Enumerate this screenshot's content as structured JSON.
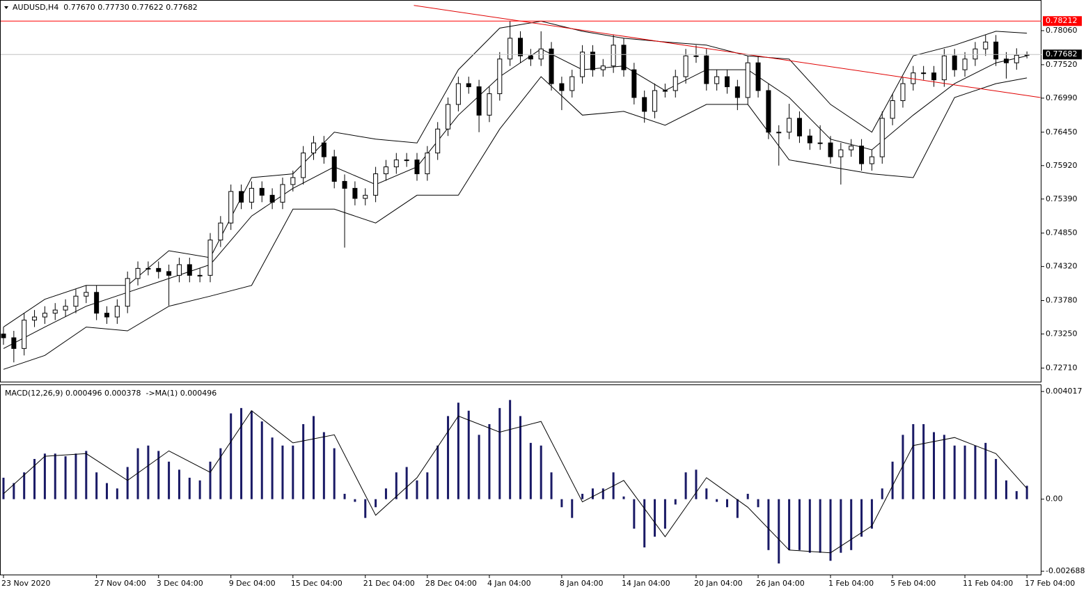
{
  "chart_data": [
    {
      "type": "candlestick",
      "title": "AUDUSD,H4  0.77670 0.77730 0.77622 0.77682",
      "categories": [
        "23 Nov 2020",
        null,
        null,
        null,
        null,
        null,
        null,
        null,
        null,
        "27 Nov 04:00",
        null,
        null,
        null,
        null,
        null,
        "3 Dec 04:00",
        null,
        null,
        null,
        null,
        null,
        null,
        "9 Dec 04:00",
        null,
        null,
        null,
        null,
        null,
        "15 Dec 04:00",
        null,
        null,
        null,
        null,
        null,
        null,
        "21 Dec 04:00",
        null,
        null,
        null,
        null,
        null,
        "28 Dec 04:00",
        null,
        null,
        null,
        null,
        null,
        "4 Jan 04:00",
        null,
        null,
        null,
        null,
        null,
        null,
        "8 Jan 04:00",
        null,
        null,
        null,
        null,
        null,
        "14 Jan 04:00",
        null,
        null,
        null,
        null,
        null,
        null,
        "20 Jan 04:00",
        null,
        null,
        null,
        null,
        null,
        "26 Jan 04:00",
        null,
        null,
        null,
        null,
        null,
        null,
        "1 Feb 04:00",
        null,
        null,
        null,
        null,
        null,
        "5 Feb 04:00",
        null,
        null,
        null,
        null,
        null,
        null,
        "11 Feb 04:00",
        null,
        null,
        null,
        null,
        null,
        "17 Feb 04:00"
      ],
      "open": [
        0.7325,
        0.7319,
        0.7302,
        0.7347,
        0.7352,
        0.7358,
        0.7363,
        0.7369,
        0.7385,
        0.7391,
        0.7358,
        0.7352,
        0.7369,
        0.7413,
        0.7429,
        0.7429,
        0.7424,
        0.7418,
        0.7435,
        0.7418,
        0.7418,
        0.7474,
        0.7501,
        0.7551,
        0.7534,
        0.7556,
        0.7545,
        0.7534,
        0.7562,
        0.7573,
        0.7612,
        0.7628,
        0.7606,
        0.7567,
        0.7556,
        0.754,
        0.7545,
        0.7579,
        0.759,
        0.7601,
        0.7601,
        0.7579,
        0.7612,
        0.765,
        0.7689,
        0.7722,
        0.7717,
        0.7672,
        0.7706,
        0.7761,
        0.7794,
        0.7766,
        0.7761,
        0.7777,
        0.7722,
        0.7711,
        0.7733,
        0.7772,
        0.7744,
        0.775,
        0.7783,
        0.7744,
        0.77,
        0.7678,
        0.7711,
        0.7711,
        0.7733,
        0.7766,
        0.7766,
        0.7722,
        0.7733,
        0.7717,
        0.77,
        0.7755,
        0.7711,
        0.7645,
        0.7645,
        0.7667,
        0.7639,
        0.7628,
        0.7628,
        0.7606,
        0.7617,
        0.7623,
        0.7595,
        0.7606,
        0.7667,
        0.7695,
        0.7722,
        0.7739,
        0.7739,
        0.7728,
        0.7766,
        0.7744,
        0.7761,
        0.7777,
        0.7788,
        0.7761,
        0.7755,
        0.7767
      ],
      "high": [
        0.7336,
        0.733,
        0.7358,
        0.7363,
        0.7369,
        0.7374,
        0.738,
        0.7396,
        0.7402,
        0.7402,
        0.7369,
        0.738,
        0.7424,
        0.744,
        0.744,
        0.744,
        0.7435,
        0.7446,
        0.7446,
        0.7429,
        0.7485,
        0.7512,
        0.7562,
        0.7562,
        0.7567,
        0.7567,
        0.7556,
        0.7573,
        0.7584,
        0.7623,
        0.7639,
        0.7639,
        0.7617,
        0.7578,
        0.7567,
        0.7556,
        0.759,
        0.7601,
        0.7612,
        0.7612,
        0.7612,
        0.7623,
        0.7661,
        0.77,
        0.7733,
        0.7733,
        0.7728,
        0.7717,
        0.7772,
        0.7821,
        0.7805,
        0.7777,
        0.7805,
        0.7788,
        0.7733,
        0.7744,
        0.7783,
        0.7783,
        0.7761,
        0.78,
        0.7794,
        0.7755,
        0.7711,
        0.7722,
        0.7722,
        0.7744,
        0.7777,
        0.7783,
        0.7777,
        0.7744,
        0.7744,
        0.7728,
        0.7766,
        0.7766,
        0.7722,
        0.7656,
        0.769,
        0.7678,
        0.765,
        0.7656,
        0.7639,
        0.7628,
        0.7634,
        0.7634,
        0.7617,
        0.7678,
        0.7706,
        0.7733,
        0.775,
        0.775,
        0.775,
        0.7777,
        0.7777,
        0.7772,
        0.7788,
        0.7799,
        0.7799,
        0.7772,
        0.7778,
        0.7773
      ],
      "low": [
        0.7308,
        0.728,
        0.7291,
        0.7336,
        0.7341,
        0.7347,
        0.7352,
        0.7358,
        0.7374,
        0.7347,
        0.7341,
        0.7341,
        0.7358,
        0.7402,
        0.7418,
        0.7413,
        0.737,
        0.7407,
        0.7407,
        0.7407,
        0.7407,
        0.7463,
        0.749,
        0.7523,
        0.7523,
        0.7534,
        0.7523,
        0.7523,
        0.7551,
        0.7562,
        0.7601,
        0.7595,
        0.7556,
        0.7462,
        0.7529,
        0.7529,
        0.7534,
        0.7568,
        0.7579,
        0.759,
        0.7568,
        0.7568,
        0.7601,
        0.7639,
        0.7678,
        0.7706,
        0.7645,
        0.7661,
        0.7695,
        0.775,
        0.7755,
        0.775,
        0.775,
        0.7711,
        0.768,
        0.77,
        0.7722,
        0.7733,
        0.7733,
        0.7739,
        0.7733,
        0.7689,
        0.766,
        0.7667,
        0.77,
        0.77,
        0.7722,
        0.7755,
        0.7711,
        0.7711,
        0.7706,
        0.768,
        0.7689,
        0.77,
        0.7634,
        0.7592,
        0.7634,
        0.7628,
        0.7617,
        0.7617,
        0.7595,
        0.7562,
        0.7606,
        0.7584,
        0.7584,
        0.7595,
        0.7656,
        0.7684,
        0.7711,
        0.7728,
        0.7717,
        0.7717,
        0.7733,
        0.7733,
        0.775,
        0.7766,
        0.775,
        0.773,
        0.7744,
        0.7762
      ],
      "close": [
        0.7319,
        0.7302,
        0.7347,
        0.7352,
        0.7358,
        0.7363,
        0.7369,
        0.7385,
        0.7391,
        0.7358,
        0.7352,
        0.7369,
        0.7413,
        0.7429,
        0.7429,
        0.7424,
        0.7418,
        0.7435,
        0.7418,
        0.7418,
        0.7474,
        0.7501,
        0.7551,
        0.7534,
        0.7556,
        0.7545,
        0.7534,
        0.7562,
        0.7573,
        0.7612,
        0.7628,
        0.7606,
        0.7567,
        0.7556,
        0.754,
        0.7545,
        0.7579,
        0.759,
        0.7601,
        0.7601,
        0.7579,
        0.7612,
        0.765,
        0.7689,
        0.7722,
        0.7717,
        0.7672,
        0.7706,
        0.7761,
        0.7794,
        0.7766,
        0.7761,
        0.7777,
        0.7722,
        0.7711,
        0.7733,
        0.7772,
        0.7744,
        0.775,
        0.7783,
        0.7744,
        0.77,
        0.7678,
        0.7711,
        0.7711,
        0.7733,
        0.7766,
        0.7766,
        0.7722,
        0.7733,
        0.7717,
        0.77,
        0.7755,
        0.7711,
        0.7645,
        0.7645,
        0.7667,
        0.7639,
        0.7628,
        0.7628,
        0.7606,
        0.7617,
        0.7623,
        0.7595,
        0.7606,
        0.7667,
        0.7695,
        0.7722,
        0.7739,
        0.7739,
        0.7728,
        0.7766,
        0.7744,
        0.7761,
        0.7777,
        0.7788,
        0.7761,
        0.7755,
        0.7767,
        0.7768
      ],
      "color": "#000000",
      "bands": [
        {
          "x": [
            0,
            4,
            8,
            12,
            16,
            20,
            24,
            28,
            32,
            36,
            40,
            44,
            48,
            52,
            56,
            60,
            64,
            68,
            72,
            76,
            80,
            84,
            88,
            92,
            96,
            99
          ],
          "values": [
            0.7336,
            0.738,
            0.7402,
            0.7402,
            0.7457,
            0.7446,
            0.7573,
            0.7579,
            0.7645,
            0.7634,
            0.7628,
            0.7744,
            0.781,
            0.7821,
            0.7805,
            0.7794,
            0.7788,
            0.7783,
            0.7766,
            0.7761,
            0.7689,
            0.7645,
            0.7766,
            0.7783,
            0.7805,
            0.7802
          ],
          "color": "#000000"
        },
        {
          "x": [
            0,
            4,
            8,
            12,
            16,
            20,
            24,
            28,
            32,
            36,
            40,
            44,
            48,
            52,
            56,
            60,
            64,
            68,
            72,
            76,
            80,
            84,
            88,
            92,
            96,
            99
          ],
          "values": [
            0.7302,
            0.7336,
            0.7369,
            0.7391,
            0.7413,
            0.7435,
            0.7512,
            0.7556,
            0.759,
            0.7562,
            0.759,
            0.7672,
            0.7733,
            0.7777,
            0.7744,
            0.775,
            0.7711,
            0.7744,
            0.7744,
            0.77,
            0.7634,
            0.7617,
            0.7672,
            0.7722,
            0.7755,
            0.7766
          ],
          "color": "#000000"
        },
        {
          "x": [
            0,
            4,
            8,
            12,
            16,
            20,
            24,
            28,
            32,
            36,
            40,
            44,
            48,
            52,
            56,
            60,
            64,
            68,
            72,
            76,
            80,
            84,
            88,
            92,
            96,
            99
          ],
          "values": [
            0.7269,
            0.7291,
            0.7336,
            0.733,
            0.7369,
            0.7385,
            0.7402,
            0.7523,
            0.7523,
            0.7501,
            0.7545,
            0.7545,
            0.765,
            0.7733,
            0.7672,
            0.7678,
            0.7656,
            0.7689,
            0.7689,
            0.7601,
            0.759,
            0.7579,
            0.7573,
            0.77,
            0.7722,
            0.7731
          ],
          "color": "#000000"
        }
      ],
      "trendline": {
        "x": [
          39.7,
          100.3
        ],
        "y": [
          0.7846,
          0.77
        ],
        "color": "#e00000"
      },
      "levels": [
        {
          "value": 0.78212,
          "color": "#ff0000"
        },
        {
          "value": 0.77682,
          "color": "#000000"
        }
      ],
      "ylim": [
        0.72494,
        0.78546
      ],
      "yticks": [
        {
          "value": 0.7806,
          "label": "0.78060"
        },
        {
          "value": 0.7752,
          "label": "0.77520"
        },
        {
          "value": 0.7699,
          "label": "0.76990"
        },
        {
          "value": 0.7645,
          "label": "0.76450"
        },
        {
          "value": 0.7592,
          "label": "0.75920"
        },
        {
          "value": 0.7539,
          "label": "0.75390"
        },
        {
          "value": 0.7485,
          "label": "0.74850"
        },
        {
          "value": 0.7432,
          "label": "0.74320"
        },
        {
          "value": 0.7378,
          "label": "0.73780"
        },
        {
          "value": 0.7325,
          "label": "0.73250"
        },
        {
          "value": 0.7271,
          "label": "0.72710"
        }
      ]
    },
    {
      "type": "bar",
      "title": "MACD(12,26,9) 0.000496 0.000378  ->MA(1) 0.000496",
      "values": [
        0.0008,
        0.0006,
        0.001,
        0.0015,
        0.0017,
        0.0017,
        0.0016,
        0.0017,
        0.0018,
        0.001,
        0.0006,
        0.0004,
        0.0012,
        0.0019,
        0.002,
        0.0018,
        0.0014,
        0.0011,
        0.0008,
        0.0007,
        0.0014,
        0.0019,
        0.0032,
        0.0034,
        0.0033,
        0.0029,
        0.0023,
        0.002,
        0.002,
        0.0028,
        0.0031,
        0.0025,
        0.0019,
        0.0002,
        -0.0001,
        -0.0007,
        -0.0003,
        0.0004,
        0.001,
        0.0012,
        0.0007,
        0.001,
        0.002,
        0.0031,
        0.0036,
        0.0033,
        0.0024,
        0.0028,
        0.0034,
        0.0037,
        0.0031,
        0.0021,
        0.002,
        0.001,
        -0.0003,
        -0.0007,
        0.0002,
        0.0004,
        0.0004,
        0.001,
        0.0001,
        -0.0011,
        -0.0018,
        -0.0014,
        -0.0011,
        -0.0002,
        0.001,
        0.0011,
        0.0004,
        -0.0001,
        -0.0003,
        -0.0007,
        0.0002,
        -0.0003,
        -0.0019,
        -0.0024,
        -0.0019,
        -0.0019,
        -0.002,
        -0.002,
        -0.0023,
        -0.002,
        -0.0019,
        -0.0014,
        -0.0011,
        0.0004,
        0.0014,
        0.0024,
        0.0028,
        0.0028,
        0.0025,
        0.0024,
        0.002,
        0.002,
        0.002,
        0.0021,
        0.0015,
        0.0007,
        0.0003,
        0.0005
      ],
      "color": "#1a1a66",
      "signal": {
        "x": [
          0,
          4,
          8,
          12,
          16,
          20,
          24,
          28,
          32,
          36,
          40,
          44,
          48,
          52,
          56,
          60,
          64,
          68,
          72,
          76,
          80,
          84,
          88,
          92,
          96,
          99
        ],
        "values": [
          0.0002,
          0.0016,
          0.0017,
          0.0007,
          0.0018,
          0.001,
          0.0033,
          0.0021,
          0.0024,
          -0.0006,
          0.0008,
          0.0031,
          0.0025,
          0.0029,
          -0.0001,
          0.0007,
          -0.0014,
          0.0008,
          -0.0003,
          -0.0019,
          -0.002,
          -0.001,
          0.002,
          0.0023,
          0.0017,
          0.0004
        ],
        "color": "#000000"
      },
      "ylim": [
        -0.00284,
        0.00428
      ],
      "yticks": [
        0.004017,
        {
          "value": 0,
          "label": "0.00"
        },
        -0.002688
      ]
    }
  ]
}
